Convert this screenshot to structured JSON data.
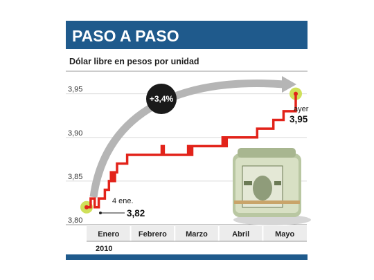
{
  "header": {
    "title": "PASO A PASO"
  },
  "subtitle": "Dólar libre en pesos por unidad",
  "colors": {
    "banner": "#1f5a8c",
    "accent_bar": "#7aa9cc",
    "line": "#e2231a",
    "highlight": "#cfe05a",
    "arrow": "#b5b5b5",
    "badge": "#1a1a1a",
    "grid": "#dcdcdc",
    "month_band": "#ececec"
  },
  "chart_data": {
    "type": "line",
    "title": "",
    "ylabel": "",
    "xlabel": "",
    "ylim": [
      3.8,
      3.96
    ],
    "yticks": [
      "3,80",
      "3,85",
      "3,90",
      "3,95"
    ],
    "ytick_values": [
      3.8,
      3.85,
      3.9,
      3.95
    ],
    "months": [
      "Enero",
      "Febrero",
      "Marzo",
      "Abril",
      "Mayo"
    ],
    "year_label": "2010",
    "grid": true,
    "series": [
      {
        "values": [
          3.82,
          3.82,
          3.83,
          3.83,
          3.82,
          3.82,
          3.83,
          3.83,
          3.83,
          3.84,
          3.84,
          3.85,
          3.86,
          3.85,
          3.86,
          3.87,
          3.87,
          3.87,
          3.87,
          3.87,
          3.88,
          3.88,
          3.88,
          3.88,
          3.88,
          3.88,
          3.88,
          3.88,
          3.88,
          3.88,
          3.88,
          3.88,
          3.88,
          3.88,
          3.88,
          3.88,
          3.88,
          3.89,
          3.88,
          3.88,
          3.88,
          3.88,
          3.88,
          3.88,
          3.88,
          3.88,
          3.88,
          3.88,
          3.88,
          3.88,
          3.89,
          3.88,
          3.89,
          3.89,
          3.89,
          3.89,
          3.89,
          3.89,
          3.89,
          3.89,
          3.89,
          3.89,
          3.89,
          3.89,
          3.89,
          3.89,
          3.89,
          3.9,
          3.89,
          3.9,
          3.9,
          3.9,
          3.9,
          3.9,
          3.9,
          3.9,
          3.9,
          3.9,
          3.9,
          3.9,
          3.9,
          3.9,
          3.9,
          3.9,
          3.91,
          3.91,
          3.91,
          3.91,
          3.91,
          3.91,
          3.91,
          3.91,
          3.92,
          3.92,
          3.92,
          3.92,
          3.92,
          3.93,
          3.93,
          3.93,
          3.93,
          3.93,
          3.93,
          3.95
        ]
      }
    ],
    "start_annotation": {
      "date": "4 ene.",
      "value": "3,82"
    },
    "end_annotation": {
      "date": "ayer",
      "value": "3,95"
    },
    "change_badge": "+3,4%"
  }
}
